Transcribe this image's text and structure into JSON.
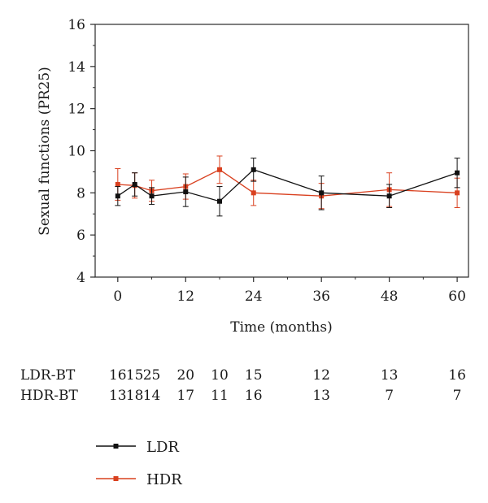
{
  "chart_data": {
    "type": "line",
    "xlabel": "Time (months)",
    "ylabel": "Sexual functions (PR25)",
    "xlim": [
      -4,
      62
    ],
    "ylim": [
      4,
      16
    ],
    "xticks": [
      0,
      12,
      24,
      36,
      48,
      60
    ],
    "yticks": [
      4,
      6,
      8,
      10,
      12,
      14,
      16
    ],
    "grid": false,
    "series": [
      {
        "name": "LDR",
        "color": "#111111",
        "x": [
          0,
          3,
          6,
          12,
          18,
          24,
          36,
          48,
          60
        ],
        "y": [
          7.85,
          8.4,
          7.85,
          8.05,
          7.6,
          9.1,
          8.0,
          7.85,
          8.95
        ],
        "error": [
          0.45,
          0.55,
          0.4,
          0.7,
          0.7,
          0.55,
          0.8,
          0.55,
          0.7
        ]
      },
      {
        "name": "HDR",
        "color": "#d9401f",
        "x": [
          0,
          3,
          6,
          12,
          18,
          24,
          36,
          48,
          60
        ],
        "y": [
          8.4,
          8.35,
          8.1,
          8.3,
          9.1,
          8.0,
          7.85,
          8.15,
          8.0
        ],
        "error": [
          0.75,
          0.6,
          0.5,
          0.6,
          0.65,
          0.6,
          0.6,
          0.8,
          0.7
        ]
      }
    ],
    "counts": [
      {
        "label": "LDR-BT",
        "values": [
          "16",
          "15",
          "25",
          "20",
          "10",
          "15",
          "12",
          "13",
          "16"
        ]
      },
      {
        "label": "HDR-BT",
        "values": [
          "13",
          "18",
          "14",
          "17",
          "11",
          "16",
          "13",
          "7",
          "7"
        ]
      }
    ],
    "legend": {
      "position": "bottom-left",
      "entries": [
        "LDR",
        "HDR"
      ]
    }
  }
}
